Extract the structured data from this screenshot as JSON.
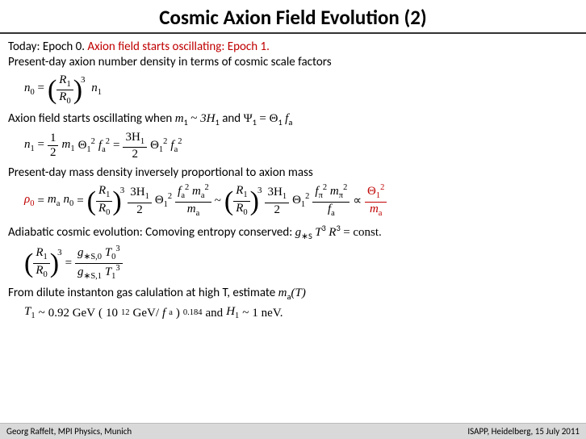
{
  "title": "Cosmic Axion Field Evolution (2)",
  "line1a": "Today: Epoch 0.   ",
  "line1b": "Axion field starts oscillating: Epoch 1.",
  "line2": "Present-day axion number density in terms of cosmic scale factors",
  "eq1": {
    "lhs_sym": "n",
    "lhs_sub": "0",
    "R1": "R",
    "R1sub": "1",
    "R0": "R",
    "R0sub": "0",
    "pow": "3",
    "rhs_sym": "n",
    "rhs_sub": "1"
  },
  "line3a": "Axion field starts oscillating when  ",
  "line3_m": "m",
  "line3_m_sub": "1",
  "line3_tilde": " ~ ",
  "line3_3H": "3H",
  "line3_H_sub": "1",
  "line3_and": "  and  ",
  "line3_Psi": "Ψ",
  "line3_Psi_sub": "1",
  "line3_eq": " = ",
  "line3_Th": "Θ",
  "line3_Th_sub": "1",
  "line3_fa": "f",
  "line3_fa_sub": "a",
  "eq2": {
    "n1": "n",
    "n1sub": "1",
    "half_num": "1",
    "half_den": "2",
    "m1": " m",
    "m1sub": "1",
    "Th": "Θ",
    "Thsub": "1",
    "Thsup": "2",
    "fa": "f",
    "fasub": "a",
    "fasup": "2",
    "eq2_num": "3H",
    "eq2_num_sub": "1",
    "eq2_den": "2",
    "Th2": "Θ",
    "Th2sub": "1",
    "Th2sup": "2",
    "fa2": "f",
    "fa2sub": "a",
    "fa2sup": "2"
  },
  "line4": "Present-day mass density inversely proportional to axion mass",
  "eq3": {
    "rho": "ρ",
    "rho_sub": "0",
    "ma": "m",
    "ma_sub": "a",
    "n0": "n",
    "n0_sub": "0",
    "R1": "R",
    "R1sub": "1",
    "R0": "R",
    "R0sub": "0",
    "pow": "3",
    "coef_num": "3H",
    "coef_num_sub": "1",
    "coef_den": "2",
    "Th": "Θ",
    "Th_sub": "1",
    "Th_sup": "2",
    "frA_num_a": "f",
    "frA_num_a_sub": "a",
    "frA_num_a_sup": "2",
    "frA_num_b": "m",
    "frA_num_b_sub": "a",
    "frA_num_b_sup": "2",
    "frA_den": "m",
    "frA_den_sub": "a",
    "tilde": " ~ ",
    "frB_num_a": "f",
    "frB_num_a_sub": "π",
    "frB_num_a_sup": "2",
    "frB_num_b": "m",
    "frB_num_b_sub": "π",
    "frB_num_b_sup": "2",
    "frB_den": "f",
    "frB_den_sub": "a",
    "prop": " ∝ ",
    "red_num": "Θ",
    "red_num_sub": "1",
    "red_num_sup": "2",
    "red_den": "m",
    "red_den_sub": "a"
  },
  "line5a": "Adiabatic cosmic evolution: Comoving entropy conserved:   ",
  "line5_g": "g",
  "line5_g_sub": "∗S",
  "line5_T": "T",
  "line5_T_sup": "3",
  "line5_R": "R",
  "line5_R_sup": "3",
  "line5_const": " = const.",
  "eq4": {
    "R1": "R",
    "R1sub": "1",
    "R0": "R",
    "R0sub": "0",
    "pow": "3",
    "num_g": "g",
    "num_g_sub": "∗S,0",
    "num_T": "T",
    "num_T_sub": "0",
    "num_T_sup": "3",
    "den_g": "g",
    "den_g_sub": "∗S,1",
    "den_T": "T",
    "den_T_sub": "1",
    "den_T_sup": "3"
  },
  "line6a": "From dilute instanton gas calulation at high T, estimate ",
  "line6_m": "m",
  "line6_m_sub": "a",
  "line6_paren": "(T)",
  "eq5": {
    "T1": "T",
    "T1_sub": "1",
    "tilde": " ~ ",
    "val1": "0.92 GeV ",
    "inner_a": "10",
    "inner_a_sup": "12",
    "inner_b": "GeV/",
    "inner_f": "f",
    "inner_f_sub": "a",
    "pow": "0.184",
    "and": "  and  ",
    "H1": "H",
    "H1_sub": "1",
    "tilde2": " ~ ",
    "val2": "1 neV."
  },
  "footer_left": "Georg Raffelt, MPI Physics, Munich",
  "footer_right": "ISAPP, Heidelberg, 15 July 2011",
  "colors": {
    "accent_red": "#c00000",
    "footer_bg": "#d9d9d9"
  }
}
